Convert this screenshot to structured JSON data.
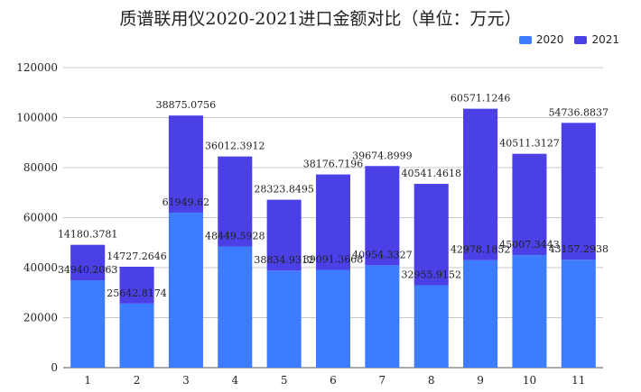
{
  "chart_data": {
    "type": "bar",
    "stacked": true,
    "title": "质谱联用仪2020-2021进口金额对比（单位：万元）",
    "xlabel": "",
    "ylabel": "",
    "categories": [
      "1",
      "2",
      "3",
      "4",
      "5",
      "6",
      "7",
      "8",
      "9",
      "10",
      "11"
    ],
    "series": [
      {
        "name": "2020",
        "color": "#3d7bff",
        "values": [
          34940.2063,
          25642.8174,
          61949.62,
          48449.5928,
          38834.9312,
          39091.3668,
          40954.3327,
          32955.9152,
          42978.1852,
          45007.3443,
          43157.2938
        ],
        "labels": [
          "34940.2063",
          "25642.8174",
          "61949.62",
          "48449.5928",
          "38834.9312",
          "39091.3668",
          "40954.3327",
          "32955.9152",
          "42978.1852",
          "45007.3443",
          "43157.2938"
        ]
      },
      {
        "name": "2021",
        "color": "#4b3fe6",
        "values": [
          14180.3781,
          14727.2646,
          38875.0756,
          36012.3912,
          28323.8495,
          38176.7196,
          39674.8999,
          40541.4618,
          60571.1246,
          40511.3127,
          54736.8837
        ],
        "labels": [
          "14180.3781",
          "14727.2646",
          "38875.0756",
          "36012.3912",
          "28323.8495",
          "38176.7196",
          "39674.8999",
          "40541.4618",
          "60571.1246",
          "40511.3127",
          "54736.8837"
        ]
      }
    ],
    "ylim": [
      0,
      120000
    ],
    "yticks": [
      "0",
      "20000",
      "40000",
      "60000",
      "80000",
      "100000",
      "120000"
    ],
    "grid": true,
    "legend_position": "top-right"
  }
}
